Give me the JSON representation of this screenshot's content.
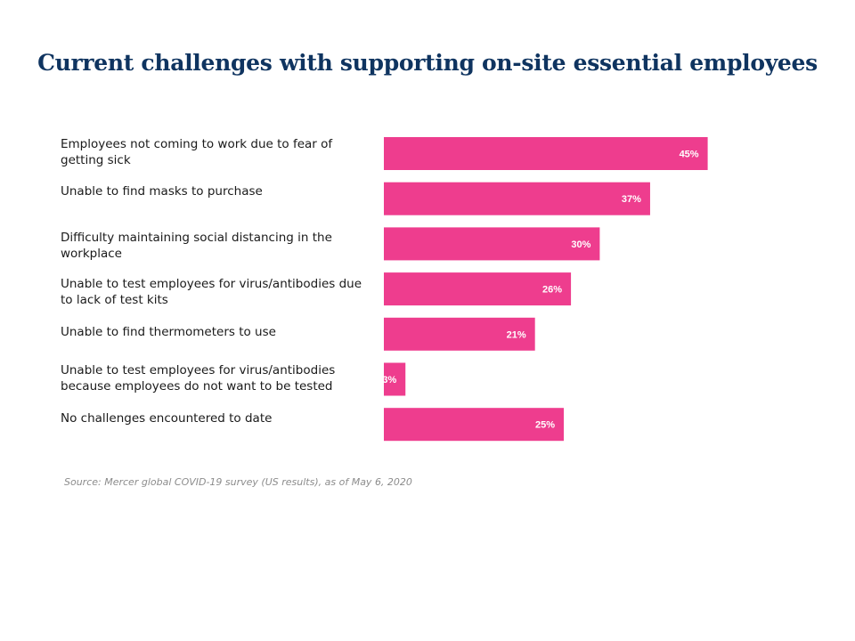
{
  "chart_data": {
    "type": "bar",
    "orientation": "horizontal",
    "title": "Current challenges with supporting on-site essential employees",
    "categories": [
      "Employees not coming to work due to fear of getting sick",
      "Unable to find masks to purchase",
      "Difficulty maintaining social distancing in the workplace",
      "Unable to test employees for virus/antibodies due to lack of test kits",
      "Unable to find thermometers to use",
      "Unable to test employees for virus/antibodies because employees do not want to be tested",
      "No challenges encountered to date"
    ],
    "values": [
      45,
      37,
      30,
      26,
      21,
      3,
      25
    ],
    "value_labels": [
      "45%",
      "37%",
      "30%",
      "26%",
      "21%",
      "3%",
      "25%"
    ],
    "xlim": [
      0,
      100
    ],
    "grid": false,
    "legend": "none",
    "bar_color": "#ee3d8e",
    "source": "Source: Mercer global COVID-19 survey (US results), as of May 6, 2020"
  }
}
